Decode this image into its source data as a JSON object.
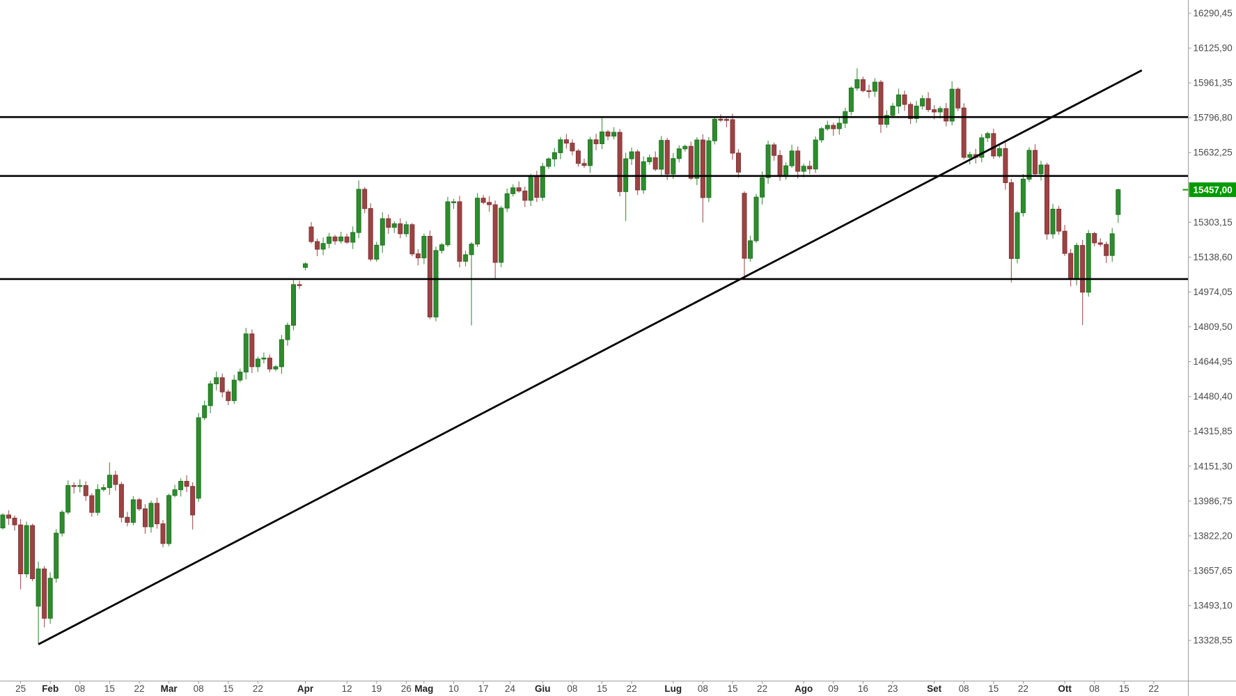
{
  "chart_data": {
    "type": "candlestick",
    "current_price": {
      "label": "15457,00",
      "value": 15457.0
    },
    "y_axis": {
      "tick_step": 164.55,
      "ticks": [
        {
          "label": "16290,45",
          "price": 16290.45
        },
        {
          "label": "16125,90",
          "price": 16125.9
        },
        {
          "label": "15961,35",
          "price": 15961.35
        },
        {
          "label": "15796,80",
          "price": 15796.8
        },
        {
          "label": "15632,25",
          "price": 15632.25
        },
        {
          "label": "15303,15",
          "price": 15303.15
        },
        {
          "label": "15138,60",
          "price": 15138.6
        },
        {
          "label": "14974,05",
          "price": 14974.05
        },
        {
          "label": "14809,50",
          "price": 14809.5
        },
        {
          "label": "14644,95",
          "price": 14644.95
        },
        {
          "label": "14480,40",
          "price": 14480.4
        },
        {
          "label": "14315,85",
          "price": 14315.85
        },
        {
          "label": "14151,30",
          "price": 14151.3
        },
        {
          "label": "13986,75",
          "price": 13986.75
        },
        {
          "label": "13822,20",
          "price": 13822.2
        },
        {
          "label": "13657,65",
          "price": 13657.65
        },
        {
          "label": "13493,10",
          "price": 13493.1
        },
        {
          "label": "13328,55",
          "price": 13328.55
        }
      ]
    },
    "x_axis": {
      "labels": [
        {
          "text": "25",
          "index": 3,
          "month": false
        },
        {
          "text": "Feb",
          "index": 8,
          "month": true
        },
        {
          "text": "08",
          "index": 13,
          "month": false
        },
        {
          "text": "15",
          "index": 18,
          "month": false
        },
        {
          "text": "22",
          "index": 23,
          "month": false
        },
        {
          "text": "Mar",
          "index": 28,
          "month": true
        },
        {
          "text": "08",
          "index": 33,
          "month": false
        },
        {
          "text": "15",
          "index": 38,
          "month": false
        },
        {
          "text": "22",
          "index": 43,
          "month": false
        },
        {
          "text": "Apr",
          "index": 51,
          "month": true
        },
        {
          "text": "12",
          "index": 58,
          "month": false
        },
        {
          "text": "19",
          "index": 63,
          "month": false
        },
        {
          "text": "26",
          "index": 68,
          "month": false
        },
        {
          "text": "Mag",
          "index": 71,
          "month": true
        },
        {
          "text": "10",
          "index": 76,
          "month": false
        },
        {
          "text": "17",
          "index": 81,
          "month": false
        },
        {
          "text": "24",
          "index": 85.5,
          "month": false
        },
        {
          "text": "Giu",
          "index": 91,
          "month": true
        },
        {
          "text": "08",
          "index": 96,
          "month": false
        },
        {
          "text": "15",
          "index": 101,
          "month": false
        },
        {
          "text": "22",
          "index": 106,
          "month": false
        },
        {
          "text": "Lug",
          "index": 113,
          "month": true
        },
        {
          "text": "08",
          "index": 118,
          "month": false
        },
        {
          "text": "15",
          "index": 123,
          "month": false
        },
        {
          "text": "22",
          "index": 128,
          "month": false
        },
        {
          "text": "Ago",
          "index": 135,
          "month": true
        },
        {
          "text": "09",
          "index": 140,
          "month": false
        },
        {
          "text": "16",
          "index": 145,
          "month": false
        },
        {
          "text": "23",
          "index": 150,
          "month": false
        },
        {
          "text": "Set",
          "index": 157,
          "month": true
        },
        {
          "text": "08",
          "index": 162,
          "month": false
        },
        {
          "text": "15",
          "index": 167,
          "month": false
        },
        {
          "text": "22",
          "index": 172,
          "month": false
        },
        {
          "text": "Ott",
          "index": 179,
          "month": true
        },
        {
          "text": "08",
          "index": 184,
          "month": false
        },
        {
          "text": "15",
          "index": 189,
          "month": false
        },
        {
          "text": "22",
          "index": 194,
          "month": false
        }
      ]
    },
    "levels": [
      {
        "name": "resistance-upper",
        "price": 15800
      },
      {
        "name": "resistance-mid",
        "price": 15522
      },
      {
        "name": "support-lower",
        "price": 15035
      }
    ],
    "trendline": {
      "from": {
        "index": 6,
        "price": 13310
      },
      "to": {
        "index": 192,
        "price": 16021
      }
    },
    "candles": {
      "closes": [
        13921,
        13906,
        13874,
        13643,
        13871,
        13620,
        13666,
        13433,
        13622,
        13835,
        13934,
        14060,
        14057,
        14060,
        14012,
        13933,
        14041,
        14050,
        14109,
        14065,
        13910,
        13886,
        13993,
        13950,
        13865,
        13976,
        13879,
        13786,
        14013,
        14040,
        14080,
        14056,
        13921,
        14380,
        14437,
        14540,
        14569,
        14502,
        14461,
        14558,
        14596,
        14776,
        14621,
        14657,
        14662,
        14610,
        14621,
        14749,
        14817,
        15009,
        15008,
        15107,
        15212,
        15176,
        15203,
        15234,
        15215,
        15234,
        15209,
        15255,
        15459,
        15368,
        15129,
        15195,
        15320,
        15279,
        15296,
        15249,
        15292,
        15154,
        15135,
        15237,
        14856,
        15170,
        15197,
        15400,
        15400,
        15119,
        15150,
        15200,
        15417,
        15397,
        15386,
        15114,
        15370,
        15438,
        15466,
        15451,
        15407,
        15520,
        15421,
        15567,
        15602,
        15632,
        15693,
        15677,
        15640,
        15581,
        15571,
        15693,
        15674,
        15730,
        15710,
        15728,
        15448,
        15603,
        15636,
        15456,
        15589,
        15608,
        15554,
        15690,
        15531,
        15604,
        15650,
        15662,
        15511,
        15692,
        15420,
        15688,
        15790,
        15789,
        15788,
        15630,
        15540,
        15133,
        15216,
        15422,
        15514,
        15669,
        15619,
        15519,
        15570,
        15640,
        15544,
        15568,
        15555,
        15692,
        15745,
        15761,
        15745,
        15771,
        15826,
        15937,
        15977,
        15925,
        15922,
        15965,
        15766,
        15808,
        15852,
        15905,
        15860,
        15793,
        15852,
        15887,
        15835,
        15824,
        15840,
        15781,
        15932,
        15843,
        15610,
        15623,
        15610,
        15702,
        15722,
        15616,
        15651,
        15490,
        15132,
        15348,
        15507,
        15643,
        15532,
        15574,
        15248,
        15365,
        15261,
        15156,
        15036,
        15194,
        14973,
        15250,
        15206,
        15199,
        15146,
        15249,
        15457
      ],
      "opens_override": {
        "0": 13860,
        "6": 13490,
        "33": 14000,
        "51": 15090,
        "52": 15281,
        "125": 15440,
        "188": 15340
      },
      "hl_override": {
        "3": [
          null,
          13570
        ],
        "6": [
          13700,
          13312
        ],
        "7": [
          null,
          13390
        ],
        "18": [
          14169,
          null
        ],
        "32": [
          null,
          13852
        ],
        "33": [
          14402,
          null
        ],
        "41": [
          14804,
          null
        ],
        "51": [
          15115,
          null
        ],
        "60": [
          15501,
          null
        ],
        "62": [
          null,
          15118
        ],
        "72": [
          null,
          14845
        ],
        "79": [
          null,
          14816
        ],
        "83": [
          null,
          15037
        ],
        "101": [
          15802,
          null
        ],
        "104": [
          null,
          15426
        ],
        "105": [
          null,
          15309
        ],
        "118": [
          null,
          15302
        ],
        "125": [
          null,
          15048
        ],
        "144": [
          16030,
          null
        ],
        "148": [
          null,
          15725
        ],
        "160": [
          15969,
          null
        ],
        "170": [
          null,
          15019
        ],
        "182": [
          null,
          14818
        ],
        "188": [
          15462,
          15300
        ]
      }
    },
    "colors": {
      "bull_body": "#2E8C2E",
      "bull_border": "#1F7520",
      "bull_wick": "#4C984C",
      "bear_body": "#9C4343",
      "bear_border": "#823434",
      "bear_wick": "#A96060",
      "drawing_line": "#000000",
      "price_label_bg": "#009B00",
      "price_label_text": "#ffffff",
      "axis_text": "#4A4A4A",
      "axis_month_text": "#222222",
      "axis_border": "#9C9C9C",
      "tick_mark": "#999999"
    },
    "layout_hints": {
      "grid": false,
      "legend": false,
      "y_axis_side": "right",
      "x_axis_side": "bottom"
    }
  }
}
